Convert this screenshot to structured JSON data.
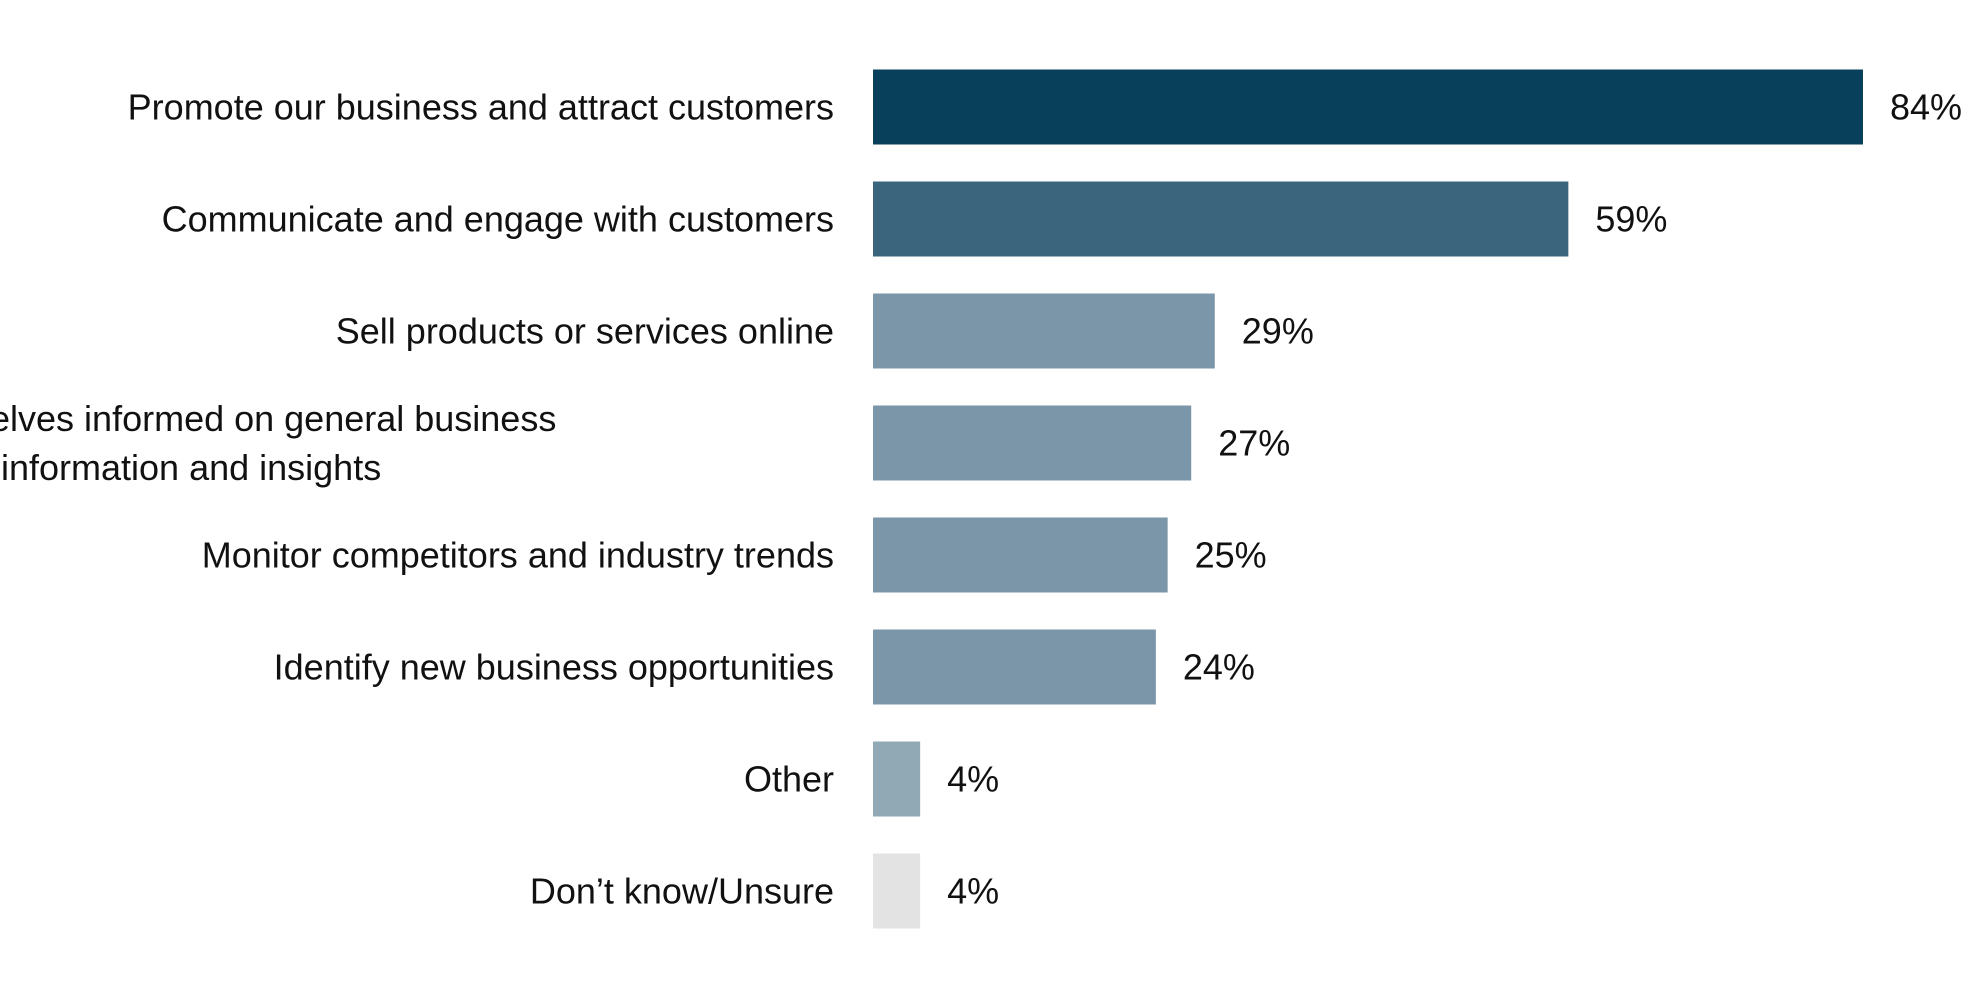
{
  "chart_data": {
    "type": "bar",
    "orientation": "horizontal",
    "title": "",
    "xlabel": "",
    "ylabel": "",
    "xlim": [
      0,
      84
    ],
    "grid": false,
    "legend": "none",
    "categories": [
      [
        "Promote our business and attract customers"
      ],
      [
        "Communicate and engage with customers"
      ],
      [
        "Sell products or services online"
      ],
      [
        "Keep ourselves informed on general business",
        "information and insights"
      ],
      [
        "Monitor competitors and industry trends"
      ],
      [
        "Identify new business opportunities"
      ],
      [
        "Other"
      ],
      [
        "Don’t know/Unsure"
      ]
    ],
    "values": [
      84,
      59,
      29,
      27,
      25,
      24,
      4,
      4
    ],
    "value_labels": [
      "84%",
      "59%",
      "29%",
      "27%",
      "25%",
      "24%",
      "4%",
      "4%"
    ],
    "bar_colors": [
      "#083f5a",
      "#3a657d",
      "#7b96a8",
      "#7b96a8",
      "#7b96a8",
      "#7b96a8",
      "#91a8b5",
      "#e3e3e3"
    ]
  }
}
